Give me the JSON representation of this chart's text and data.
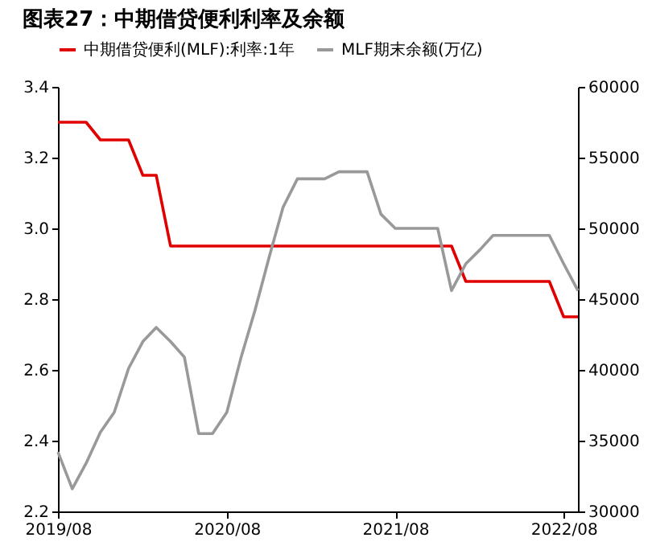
{
  "chart_data": {
    "type": "line",
    "title": "图表27：中期借贷便利利率及余额",
    "x": [
      "2019-08",
      "2019-09",
      "2019-10",
      "2019-11",
      "2019-12",
      "2020-01",
      "2020-02",
      "2020-03",
      "2020-04",
      "2020-05",
      "2020-06",
      "2020-07",
      "2020-08",
      "2020-09",
      "2020-10",
      "2020-11",
      "2020-12",
      "2021-01",
      "2021-02",
      "2021-03",
      "2021-04",
      "2021-05",
      "2021-06",
      "2021-07",
      "2021-08",
      "2021-09",
      "2021-10",
      "2021-11",
      "2021-12",
      "2022-01",
      "2022-02",
      "2022-03",
      "2022-04",
      "2022-05",
      "2022-06",
      "2022-07",
      "2022-08",
      "2022-09"
    ],
    "series": [
      {
        "name": "中期借贷便利(MLF):利率:1年",
        "color": "#e00000",
        "values": [
          3.3,
          3.3,
          3.3,
          3.25,
          3.25,
          3.25,
          3.15,
          3.15,
          2.95,
          2.95,
          2.95,
          2.95,
          2.95,
          2.95,
          2.95,
          2.95,
          2.95,
          2.95,
          2.95,
          2.95,
          2.95,
          2.95,
          2.95,
          2.95,
          2.95,
          2.95,
          2.95,
          2.95,
          2.95,
          2.85,
          2.85,
          2.85,
          2.85,
          2.85,
          2.85,
          2.85,
          2.75,
          2.75
        ]
      },
      {
        "name": "MLF期末余额(万亿)",
        "color": "#999999",
        "axis": "y2",
        "values": [
          34200,
          31600,
          33400,
          35600,
          37000,
          40100,
          42000,
          43000,
          42000,
          40900,
          35500,
          35500,
          37000,
          40900,
          44200,
          48000,
          51500,
          53500,
          53500,
          53500,
          54000,
          54000,
          54000,
          51000,
          50000,
          50000,
          50000,
          50000,
          45600,
          47500,
          48500,
          49500,
          49500,
          49500,
          49500,
          49500,
          47500,
          45600
        ]
      }
    ],
    "xlim": [
      "2019-08",
      "2022-09"
    ],
    "xticks": [
      {
        "value": "2019-08",
        "label": "2019/08"
      },
      {
        "value": "2020-08",
        "label": "2020/08"
      },
      {
        "value": "2021-08",
        "label": "2021/08"
      },
      {
        "value": "2022-08",
        "label": "2022/08"
      }
    ],
    "ylim": [
      2.2,
      3.4
    ],
    "yticks": [
      2.2,
      2.4,
      2.6,
      2.8,
      {
        "value": 3.0,
        "label": "3.0"
      },
      3.2,
      3.4
    ],
    "y2lim": [
      30000,
      60000
    ],
    "y2ticks": [
      30000,
      35000,
      40000,
      45000,
      50000,
      55000,
      60000
    ],
    "grid": false,
    "legend": "top",
    "marker": "none",
    "line_style": "solid"
  }
}
